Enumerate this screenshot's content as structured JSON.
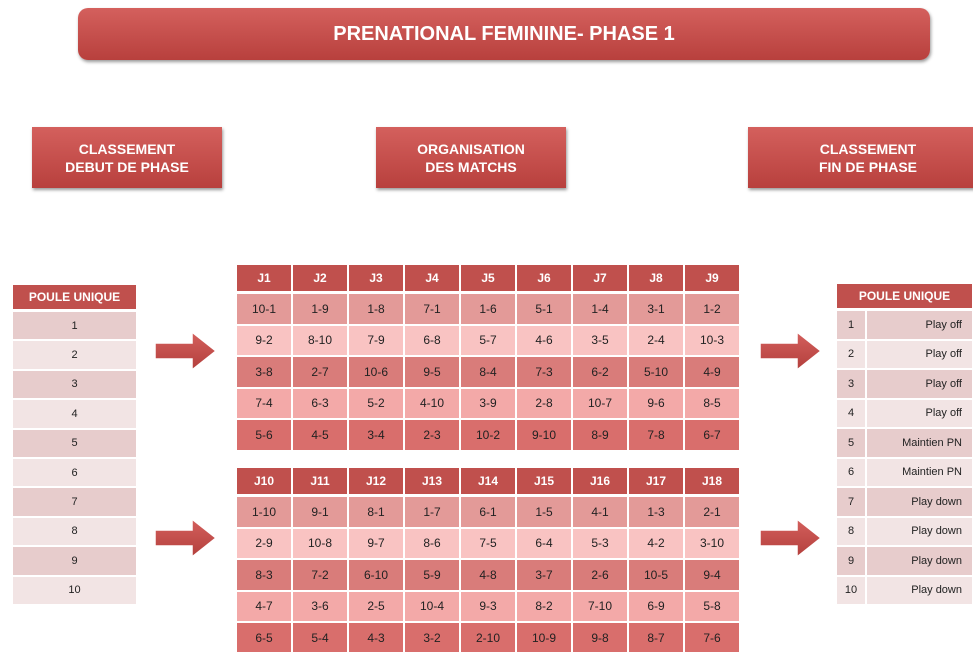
{
  "title": "PRENATIONAL FEMININE- PHASE 1",
  "headers": [
    {
      "lines": [
        "CLASSEMENT",
        "DEBUT DE PHASE"
      ]
    },
    {
      "lines": [
        "ORGANISATION",
        "DES MATCHS"
      ]
    },
    {
      "lines": [
        "CLASSEMENT",
        "FIN DE PHASE"
      ]
    }
  ],
  "start_table": {
    "header": "POULE UNIQUE",
    "rows": [
      "1",
      "2",
      "3",
      "4",
      "5",
      "6",
      "7",
      "8",
      "9",
      "10"
    ]
  },
  "schedules": [
    {
      "header": [
        "J1",
        "J2",
        "J3",
        "J4",
        "J5",
        "J6",
        "J7",
        "J8",
        "J9"
      ],
      "rows": [
        [
          "10-1",
          "1-9",
          "1-8",
          "7-1",
          "1-6",
          "5-1",
          "1-4",
          "3-1",
          "1-2"
        ],
        [
          "9-2",
          "8-10",
          "7-9",
          "6-8",
          "5-7",
          "4-6",
          "3-5",
          "2-4",
          "10-3"
        ],
        [
          "3-8",
          "2-7",
          "10-6",
          "9-5",
          "8-4",
          "7-3",
          "6-2",
          "5-10",
          "4-9"
        ],
        [
          "7-4",
          "6-3",
          "5-2",
          "4-10",
          "3-9",
          "2-8",
          "10-7",
          "9-6",
          "8-5"
        ],
        [
          "5-6",
          "4-5",
          "3-4",
          "2-3",
          "10-2",
          "9-10",
          "8-9",
          "7-8",
          "6-7"
        ]
      ]
    },
    {
      "header": [
        "J10",
        "J11",
        "J12",
        "J13",
        "J14",
        "J15",
        "J16",
        "J17",
        "J18"
      ],
      "rows": [
        [
          "1-10",
          "9-1",
          "8-1",
          "1-7",
          "6-1",
          "1-5",
          "4-1",
          "1-3",
          "2-1"
        ],
        [
          "2-9",
          "10-8",
          "9-7",
          "8-6",
          "7-5",
          "6-4",
          "5-3",
          "4-2",
          "3-10"
        ],
        [
          "8-3",
          "7-2",
          "6-10",
          "5-9",
          "4-8",
          "3-7",
          "2-6",
          "10-5",
          "9-4"
        ],
        [
          "4-7",
          "3-6",
          "2-5",
          "10-4",
          "9-3",
          "8-2",
          "7-10",
          "6-9",
          "5-8"
        ],
        [
          "6-5",
          "5-4",
          "4-3",
          "3-2",
          "2-10",
          "10-9",
          "9-8",
          "8-7",
          "7-6"
        ]
      ]
    }
  ],
  "end_table": {
    "header": "POULE UNIQUE",
    "rows": [
      [
        "1",
        "Play off"
      ],
      [
        "2",
        "Play off"
      ],
      [
        "3",
        "Play off"
      ],
      [
        "4",
        "Play off"
      ],
      [
        "5",
        "Maintien PN"
      ],
      [
        "6",
        "Maintien PN"
      ],
      [
        "7",
        "Play down"
      ],
      [
        "8",
        "Play down"
      ],
      [
        "9",
        "Play down"
      ],
      [
        "10",
        "Play down"
      ]
    ]
  }
}
